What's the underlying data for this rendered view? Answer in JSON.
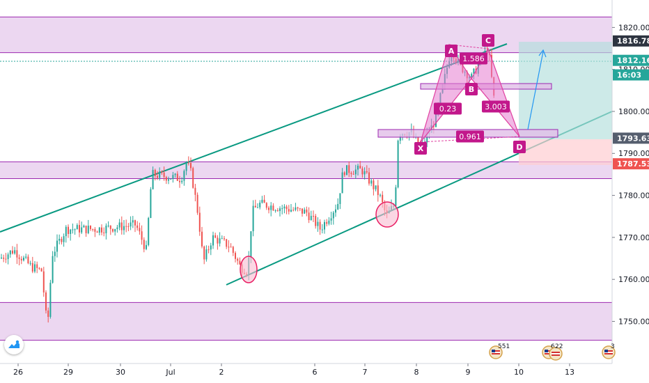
{
  "chart_data": {
    "type": "candlestick",
    "x_ticks": [
      "26",
      "29",
      "30",
      "Jul",
      "2",
      "6",
      "7",
      "8",
      "9",
      "10",
      "13"
    ],
    "y_ticks": [
      "1820.00",
      "1810.00",
      "1800.00",
      "1790.00",
      "1780.00",
      "1770.00",
      "1760.00",
      "1750.00"
    ],
    "y_range": [
      1744,
      1826
    ],
    "price_labels": [
      {
        "price": 1816.78,
        "text": "1816.78",
        "color": "#2d3440"
      },
      {
        "price": 1812.16,
        "text": "1812.16",
        "color": "#26a69a"
      },
      {
        "price": 1808.7,
        "text": "16:03",
        "color": "#26a69a"
      },
      {
        "price": 1793.63,
        "text": "1793.63",
        "color": "#555e6e"
      },
      {
        "price": 1787.53,
        "text": "1787.53",
        "color": "#ef5350"
      }
    ],
    "current_price": 1812.16,
    "zones": [
      {
        "from": 1814,
        "to": 1822.5
      },
      {
        "from": 1784,
        "to": 1788
      },
      {
        "from": 1745.5,
        "to": 1754.5
      }
    ],
    "pattern": {
      "points": [
        "X",
        "A",
        "B",
        "C",
        "D"
      ],
      "ratios": [
        "1.586",
        "0.23",
        "3.003",
        "0.961"
      ]
    },
    "events": [
      "551",
      "6",
      "22",
      "3"
    ]
  }
}
